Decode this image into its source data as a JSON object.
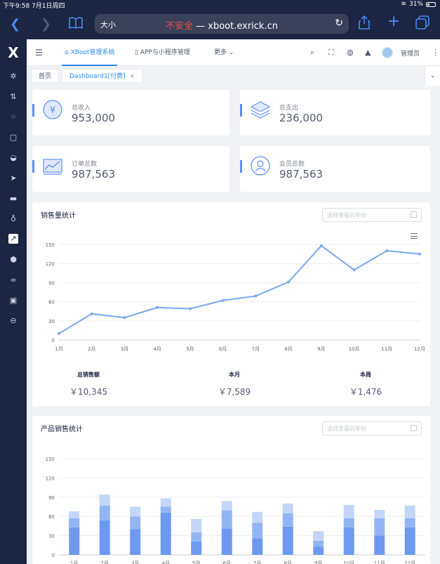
{
  "status_bar": {
    "time_date": "下午9:58  7月1日周四",
    "battery": "31%"
  },
  "browser": {
    "text_size": "大小",
    "insecure_label": "不安全",
    "separator": " — ",
    "domain": "xboot.exrick.cn"
  },
  "header": {
    "nav_tabs": [
      {
        "label": "XBoot管理系统",
        "active": true
      },
      {
        "label": "APP与小程序管理",
        "active": false
      },
      {
        "label": "更多",
        "active": false
      }
    ],
    "user": "管理员"
  },
  "tags": [
    {
      "label": "首页",
      "active": false
    },
    {
      "label": "Dashboard1[付费]",
      "active": true
    }
  ],
  "stats": [
    {
      "label": "总收入",
      "value": "953,000",
      "icon": "yen-icon"
    },
    {
      "label": "总支出",
      "value": "236,000",
      "icon": "layers-icon"
    },
    {
      "label": "订单总数",
      "value": "987,563",
      "icon": "line-chart-icon"
    },
    {
      "label": "会员总数",
      "value": "987,563",
      "icon": "user-icon"
    }
  ],
  "sales_panel": {
    "title": "销售量统计",
    "year_placeholder": "选择查看的年份",
    "summary": [
      {
        "label": "总销售额",
        "value": "￥10,345"
      },
      {
        "label": "本月",
        "value": "￥7,589"
      },
      {
        "label": "本周",
        "value": "￥1,476"
      }
    ]
  },
  "product_panel": {
    "title": "产品销售统计",
    "year_placeholder": "选择查看的年份"
  },
  "chart_data": [
    {
      "type": "line",
      "categories": [
        "1月",
        "2月",
        "3月",
        "4月",
        "5月",
        "6月",
        "7月",
        "8月",
        "9月",
        "10月",
        "11月",
        "12月"
      ],
      "values": [
        10,
        41,
        35,
        51,
        49,
        62,
        69,
        91,
        148,
        110,
        140,
        135
      ],
      "ylim": [
        0,
        150
      ],
      "yticks": [
        0,
        30,
        60,
        90,
        120,
        150
      ],
      "color": "#7aa7ee",
      "grid": true
    },
    {
      "type": "bar",
      "stacked": true,
      "categories": [
        "1月",
        "2月",
        "3月",
        "4月",
        "5月",
        "6月",
        "7月",
        "8月",
        "9月",
        "10月",
        "11月",
        "12月"
      ],
      "series": [
        {
          "values": [
            43,
            54,
            40,
            66,
            21,
            41,
            26,
            44,
            13,
            43,
            30,
            43
          ],
          "color": "#6d9af0"
        },
        {
          "values": [
            14,
            23,
            20,
            9,
            14,
            28,
            24,
            21,
            9,
            14,
            27,
            14
          ],
          "color": "#93b5f3"
        },
        {
          "values": [
            11,
            17,
            15,
            13,
            21,
            15,
            17,
            15,
            15,
            21,
            13,
            20
          ],
          "color": "#c3d6f8"
        }
      ],
      "ylim": [
        0,
        150
      ],
      "yticks": [
        0,
        30,
        60,
        90,
        120,
        150
      ],
      "grid": true
    }
  ]
}
